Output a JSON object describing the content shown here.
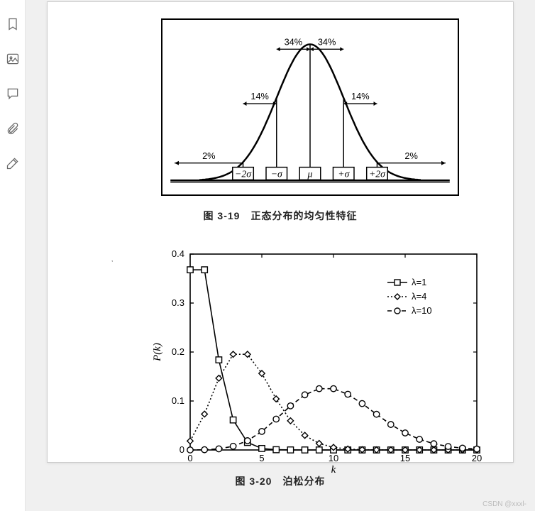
{
  "toolbar": {
    "icons": [
      "bookmark-icon",
      "image-icon",
      "comment-icon",
      "attachment-icon",
      "draw-icon"
    ]
  },
  "fig1": {
    "caption": "图 3-19　正态分布的均匀性特征",
    "percents": {
      "outer_left": "2%",
      "outer_right": "2%",
      "mid_left": "14%",
      "mid_right": "14%",
      "inner_left": "34%",
      "inner_right": "34%"
    },
    "xlabels": [
      "−2σ",
      "−σ",
      "μ",
      "+σ",
      "+2σ"
    ],
    "normal": {
      "curve_color": "#000000",
      "mu": 0,
      "sigma": 1,
      "range": [
        -3.3,
        3.3
      ]
    }
  },
  "fig2": {
    "caption": "图 3-20　泊松分布",
    "ylabel": "P(k)",
    "xlabel": "k",
    "ylim": [
      0,
      0.4
    ],
    "xlim": [
      0,
      20
    ],
    "yticks": [
      "0",
      "0.1",
      "0.2",
      "0.3",
      "0.4"
    ],
    "xticks": [
      "0",
      "5",
      "10",
      "15",
      "20"
    ],
    "legend": [
      {
        "label": "λ=1",
        "marker": "square",
        "dash": "solid"
      },
      {
        "label": "λ=4",
        "marker": "diamond",
        "dash": "dot"
      },
      {
        "label": "λ=10",
        "marker": "circle",
        "dash": "dash"
      }
    ],
    "series": {
      "lambda1": {
        "lambda": 1,
        "marker": "square",
        "dash": "solid",
        "color": "#000"
      },
      "lambda4": {
        "lambda": 4,
        "marker": "diamond",
        "dash": "dot",
        "color": "#000"
      },
      "lambda10": {
        "lambda": 10,
        "marker": "circle",
        "dash": "dash",
        "color": "#000"
      }
    },
    "colors": {
      "axis": "#000",
      "grid": "#ffffff",
      "bg": "#ffffff"
    }
  },
  "watermark": "CSDN @xxxl-"
}
